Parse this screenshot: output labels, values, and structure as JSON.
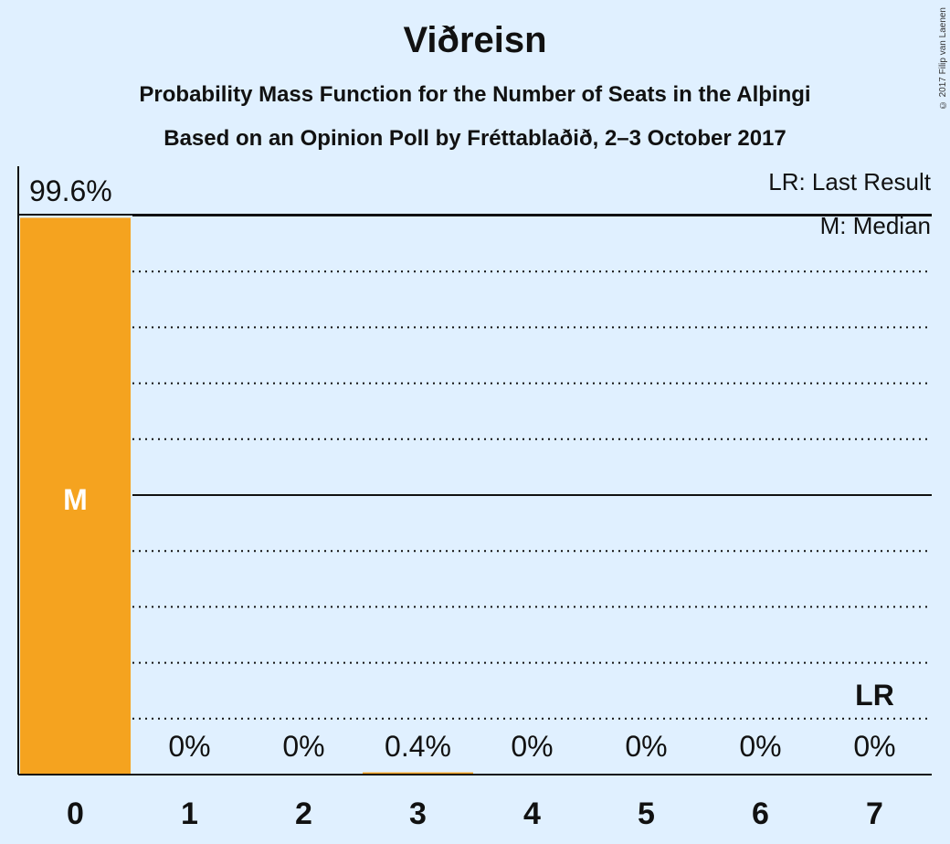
{
  "title": "Viðreisn",
  "subtitle1": "Probability Mass Function for the Number of Seats in the Alþingi",
  "subtitle2": "Based on an Opinion Poll by Fréttablaðið, 2–3 October 2017",
  "copyright": "© 2017 Filip van Laenen",
  "legend": {
    "last_result": "LR: Last Result",
    "median": "M: Median"
  },
  "colors": {
    "bar": "#f5a31f",
    "background": "#e0f0ff",
    "text": "#111111"
  },
  "chart_data": {
    "type": "bar",
    "categories": [
      "0",
      "1",
      "2",
      "3",
      "4",
      "5",
      "6",
      "7"
    ],
    "values": [
      99.6,
      0,
      0,
      0.4,
      0,
      0,
      0,
      0
    ],
    "value_labels": [
      "99.6%",
      "0%",
      "0%",
      "0.4%",
      "0%",
      "0%",
      "0%",
      "0%"
    ],
    "median_index": 0,
    "median_marker": "M",
    "last_result_index": 7,
    "last_result_marker": "LR",
    "ylim": [
      0,
      100
    ],
    "xlabel": "",
    "ylabel": "",
    "grid": true
  }
}
